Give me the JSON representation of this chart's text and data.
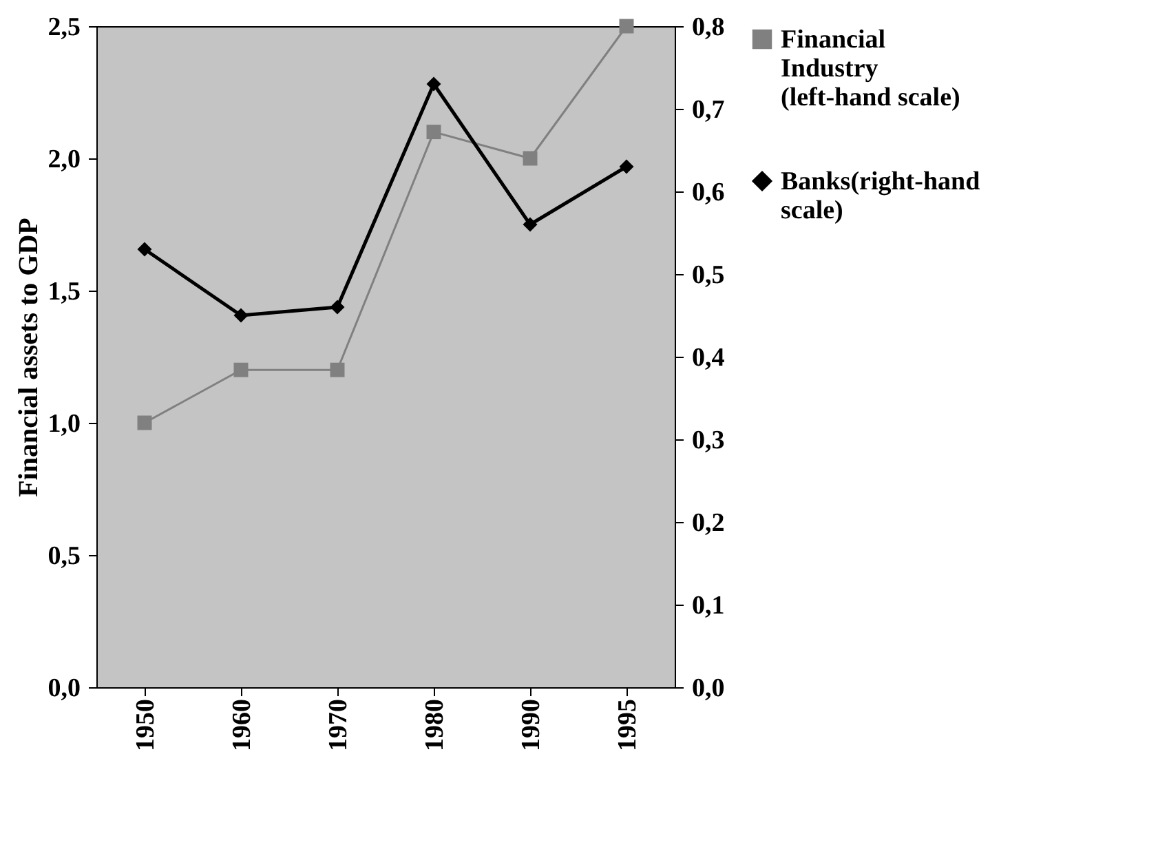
{
  "chart_data": {
    "type": "line",
    "ylabel": "Financial assets to GDP",
    "categories": [
      "1950",
      "1960",
      "1970",
      "1980",
      "1990",
      "1995"
    ],
    "series": [
      {
        "name": "Financial Industry (left-hand scale)",
        "color": "#808080",
        "marker": "square",
        "values": [
          1.0,
          1.2,
          1.2,
          2.1,
          2.0,
          2.5
        ]
      },
      {
        "name": "Banks(right-hand scale)",
        "color": "#000000",
        "marker": "diamond",
        "axis": "y2",
        "values": [
          0.53,
          0.45,
          0.46,
          0.73,
          0.56,
          0.63
        ]
      }
    ],
    "ylim": [
      0,
      2.5
    ],
    "yticks": [
      {
        "value": 0,
        "label": "0,0"
      },
      {
        "value": 0.5,
        "label": "0,5"
      },
      {
        "value": 1.0,
        "label": "1,0"
      },
      {
        "value": 1.5,
        "label": "1,5"
      },
      {
        "value": 2.0,
        "label": "2,0"
      },
      {
        "value": 2.5,
        "label": "2,5"
      }
    ],
    "y2lim": [
      0,
      0.8
    ],
    "y2ticks": [
      {
        "value": 0,
        "label": "0,0"
      },
      {
        "value": 0.1,
        "label": "0,1"
      },
      {
        "value": 0.2,
        "label": "0,2"
      },
      {
        "value": 0.3,
        "label": "0,3"
      },
      {
        "value": 0.4,
        "label": "0,4"
      },
      {
        "value": 0.5,
        "label": "0,5"
      },
      {
        "value": 0.6,
        "label": "0,6"
      },
      {
        "value": 0.7,
        "label": "0,7"
      },
      {
        "value": 0.8,
        "label": "0,8"
      }
    ],
    "grid": false,
    "legend": "right",
    "line_style": "solid"
  }
}
